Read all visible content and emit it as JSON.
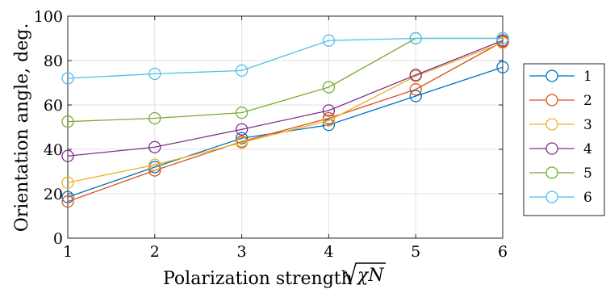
{
  "chart_data": {
    "type": "line",
    "title": "",
    "xlabel": "Polarization strength",
    "xlabel_math": "√χN",
    "ylabel": "Orientation angle, deg.",
    "x": [
      1,
      2,
      3,
      4,
      5,
      6
    ],
    "xlim": [
      1,
      6
    ],
    "ylim": [
      0,
      100
    ],
    "xticks": [
      "1",
      "2",
      "3",
      "4",
      "5",
      "6"
    ],
    "yticks": [
      "0",
      "20",
      "40",
      "60",
      "80",
      "100"
    ],
    "grid": true,
    "legend_position": "outside-right",
    "marker": "circle",
    "series": [
      {
        "name": "1",
        "color": "#0072BD",
        "values": [
          18.5,
          32,
          45,
          51,
          64,
          77
        ]
      },
      {
        "name": "2",
        "color": "#D95319",
        "values": [
          16.5,
          30.5,
          43.5,
          54,
          67,
          88.5
        ]
      },
      {
        "name": "3",
        "color": "#EDB120",
        "values": [
          25,
          33,
          43,
          53,
          73,
          88
        ]
      },
      {
        "name": "4",
        "color": "#7E2F8E",
        "values": [
          37,
          41,
          49,
          57.5,
          73.5,
          89
        ]
      },
      {
        "name": "5",
        "color": "#77AC30",
        "values": [
          52.5,
          54,
          56.5,
          68,
          90,
          90
        ]
      },
      {
        "name": "6",
        "color": "#4DBEEE",
        "values": [
          72,
          74,
          75.5,
          89,
          90,
          90
        ]
      }
    ]
  }
}
